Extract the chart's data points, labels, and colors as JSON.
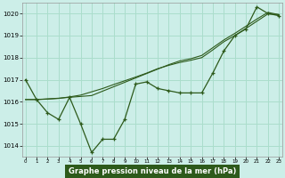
{
  "title": "Graphe pression niveau de la mer (hPa)",
  "background_color": "#cceee8",
  "grid_color": "#aaddcc",
  "line_color": "#2d5a1b",
  "x_values": [
    0,
    1,
    2,
    3,
    4,
    5,
    6,
    7,
    8,
    9,
    10,
    11,
    12,
    13,
    14,
    15,
    16,
    17,
    18,
    19,
    20,
    21,
    22,
    23
  ],
  "y_main": [
    1017.0,
    1016.1,
    1015.5,
    1015.2,
    1016.2,
    1015.0,
    1013.7,
    1014.3,
    1014.3,
    1015.2,
    1016.8,
    1016.9,
    1016.6,
    1016.5,
    1016.4,
    1016.4,
    1016.4,
    1017.3,
    1018.3,
    1019.0,
    1019.3,
    1020.3,
    1020.0,
    1019.9
  ],
  "y_line2": [
    1016.1,
    1016.1,
    1016.13,
    1016.16,
    1016.2,
    1016.24,
    1016.28,
    1016.48,
    1016.68,
    1016.88,
    1017.08,
    1017.28,
    1017.48,
    1017.68,
    1017.85,
    1017.95,
    1018.1,
    1018.45,
    1018.8,
    1019.1,
    1019.42,
    1019.75,
    1020.05,
    1019.95
  ],
  "y_line3": [
    1016.1,
    1016.1,
    1016.12,
    1016.15,
    1016.22,
    1016.3,
    1016.45,
    1016.6,
    1016.78,
    1016.95,
    1017.12,
    1017.3,
    1017.5,
    1017.65,
    1017.78,
    1017.88,
    1018.0,
    1018.35,
    1018.72,
    1019.0,
    1019.32,
    1019.65,
    1019.98,
    1019.95
  ],
  "ylim": [
    1013.5,
    1020.5
  ],
  "yticks": [
    1014,
    1015,
    1016,
    1017,
    1018,
    1019,
    1020
  ],
  "xlim": [
    -0.3,
    23.3
  ],
  "xtick_labels": [
    "0",
    "1",
    "2",
    "3",
    "4",
    "5",
    "6",
    "7",
    "8",
    "9",
    "10",
    "11",
    "12",
    "13",
    "14",
    "15",
    "16",
    "17",
    "18",
    "19",
    "20",
    "21",
    "22",
    "23"
  ]
}
